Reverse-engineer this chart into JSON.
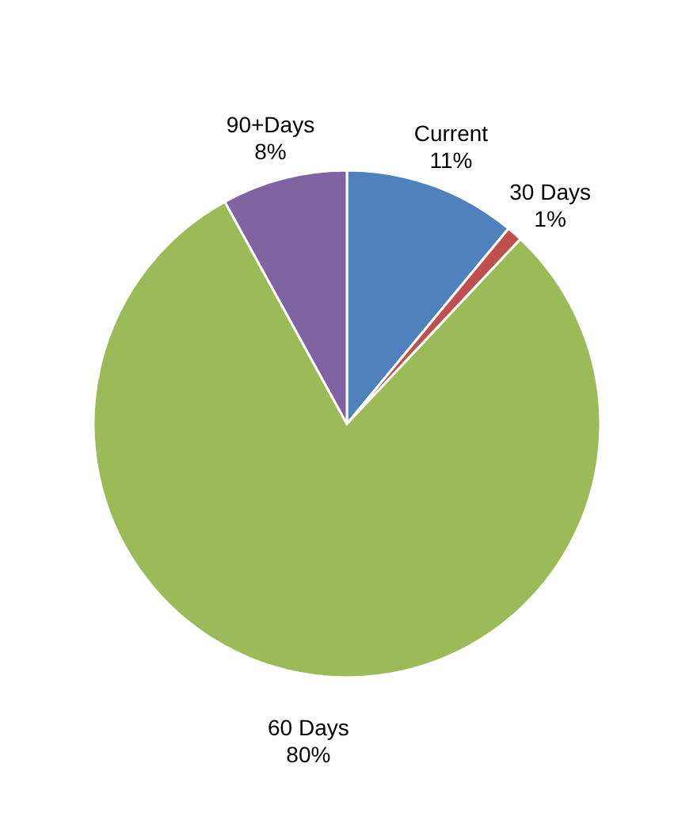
{
  "chart_data": {
    "type": "pie",
    "categories": [
      "Current",
      "30 Days",
      "60 Days",
      "90+Days"
    ],
    "values": [
      11,
      1,
      80,
      8
    ],
    "value_labels": [
      "11%",
      "1%",
      "80%",
      "8%"
    ],
    "colors": [
      "#4f81bd",
      "#c0504d",
      "#9bbb59",
      "#8064a2"
    ]
  }
}
